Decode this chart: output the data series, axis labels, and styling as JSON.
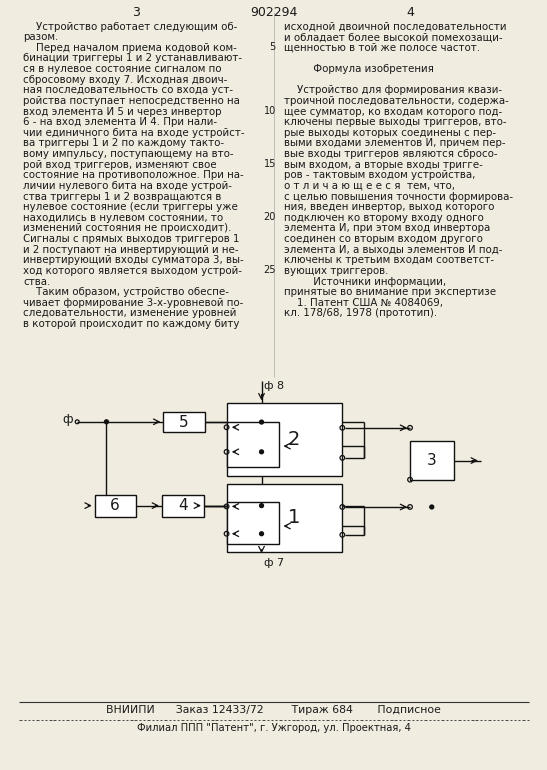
{
  "bg_color": "#f0ece0",
  "text_color": "#1a1a1a",
  "page_num_left": "3",
  "page_num_center": "902294",
  "page_num_right": "4",
  "left_col_lines": [
    "    Устройство работает следующим об-",
    "разом.",
    "    Перед началом приема кодовой ком-",
    "бинации триггеры 1 и 2 устанавливают-",
    "ся в нулевое состояние сигналом по",
    "сбросовому входу 7. Исходная двоич-",
    "ная последовательность со входа уст-",
    "ройства поступает непосредственно на",
    "вход элемента И 5 и через инвертор",
    "6 - на вход элемента И 4. При нали-",
    "чии единичного бита на входе устройст-",
    "ва триггеры 1 и 2 по каждому такто-",
    "вому импульсу, поступающему на вто-",
    "рой вход триггеров, изменяют свое",
    "состояние на противоположное. При на-",
    "личии нулевого бита на входе устрой-",
    "ства триггеры 1 и 2 возвращаются в",
    "нулевое состояние (если триггеры уже",
    "находились в нулевом состоянии, то",
    "изменений состояния не происходит).",
    "Сигналы с прямых выходов триггеров 1",
    "и 2 поступают на инвертирующий и не-",
    "инвертирующий входы сумматора 3, вы-",
    "ход которого является выходом устрой-",
    "ства.",
    "    Таким образом, устройство обеспе-",
    "чивает формирование 3-х-уровневой по-",
    "следовательности, изменение уровней",
    "в которой происходит по каждому биту"
  ],
  "right_col_lines": [
    "исходной двоичной последовательности",
    "и обладает более высокой помехозащи-",
    "щенностью в той же полосе частот.",
    "",
    "         Формула изобретения",
    "",
    "    Устройство для формирования квази-",
    "троичной последовательности, содержа-",
    "щее сумматор, ко входам которого под-",
    "ключены первые выходы триггеров, вто-",
    "рые выходы которых соединены с пер-",
    "выми входами элементов И, причем пер-",
    "вые входы триггеров являются сбросо-",
    "вым входом, а вторые входы триггe-",
    "ров - тактовым входом устройства,",
    "о т л и ч а ю щ е е с я  тем, что,",
    "с целью повышения точности формирова-",
    "ния, введен инвертор, выход которого",
    "подключен ко второму входу одного",
    "элемента И, при этом вход инвертора",
    "соединен со вторым входом другого",
    "элемента И, а выходы элементов И под-",
    "ключены к третьим входам соответст-",
    "вующих триггеров.",
    "         Источники информации,",
    "принятые во внимание при экспертизе",
    "    1. Патент США № 4084069,",
    "кл. 178/68, 1978 (прототип)."
  ],
  "line_numbers": [
    [
      5,
      2
    ],
    [
      10,
      8
    ],
    [
      15,
      13
    ],
    [
      20,
      18
    ],
    [
      25,
      23
    ]
  ],
  "footer_text1": "ВНИИПИ      Заказ 12433/72        Тираж 684       Подписное",
  "footer_text2": "Филиал ППП \"Патент\", г. Ужгород, ул. Проектная, 4"
}
